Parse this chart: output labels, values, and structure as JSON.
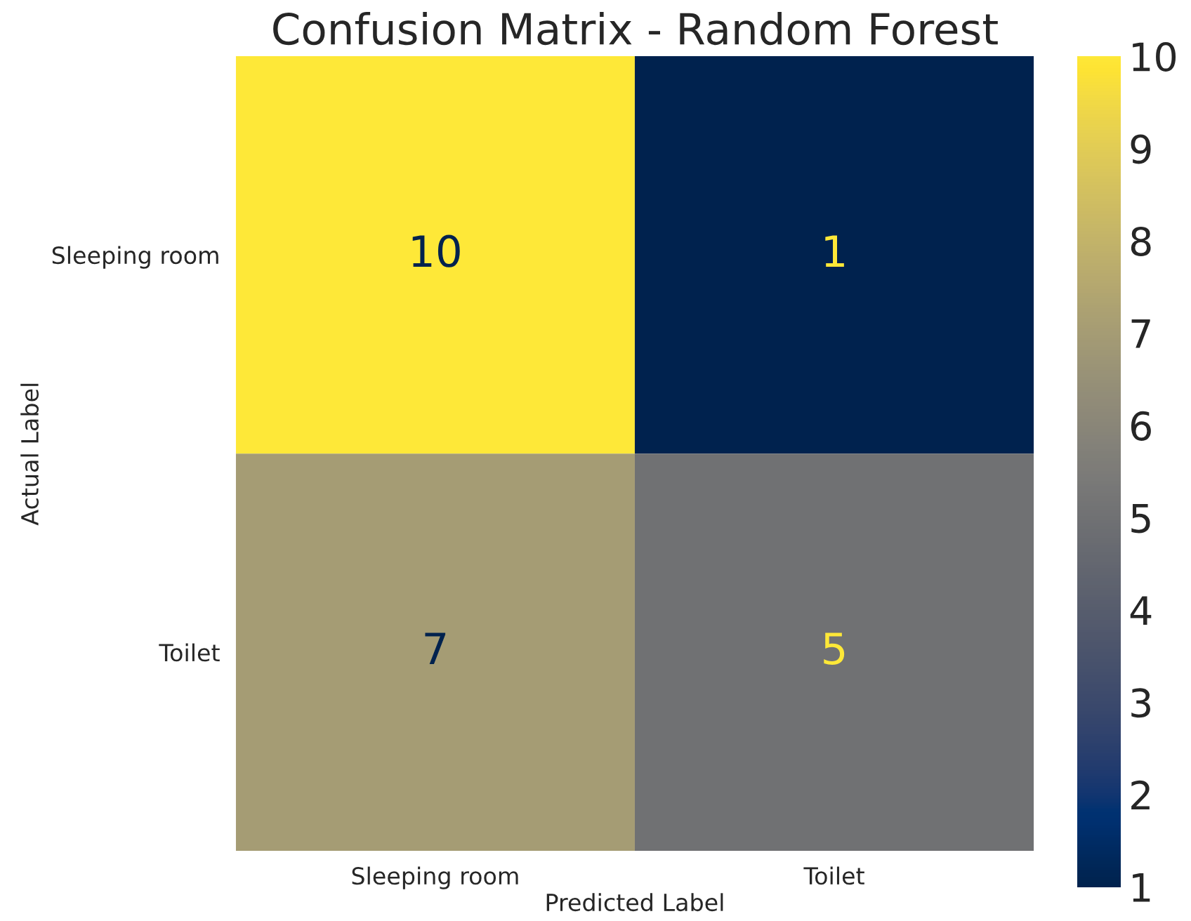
{
  "chart_data": {
    "type": "heatmap",
    "title": "Confusion Matrix - Random Forest",
    "xlabel": "Predicted Label",
    "ylabel": "Actual Label",
    "categories": [
      "Sleeping room",
      "Toilet"
    ],
    "y_categories": [
      "Sleeping room",
      "Toilet"
    ],
    "cells": [
      [
        10,
        1
      ],
      [
        7,
        5
      ]
    ],
    "data_labels": true,
    "clim": [
      1,
      10
    ],
    "cticks": [
      1,
      2,
      3,
      4,
      5,
      6,
      7,
      8,
      9,
      10
    ]
  }
}
